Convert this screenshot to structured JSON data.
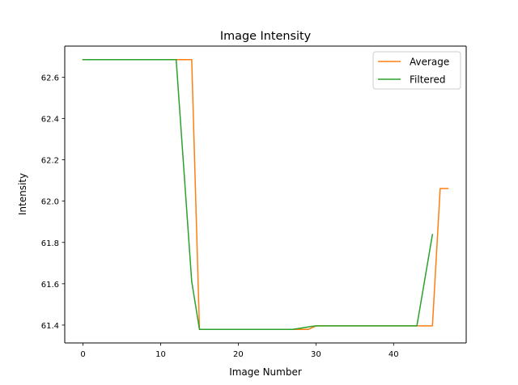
{
  "chart_data": {
    "type": "line",
    "title": "Image Intensity",
    "xlabel": "Image Number",
    "ylabel": "Intensity",
    "xlim": [
      -2.35,
      49.35
    ],
    "ylim": [
      61.3135,
      62.7505
    ],
    "xticks": [
      0,
      10,
      20,
      30,
      40
    ],
    "yticks": [
      61.4,
      61.6,
      61.8,
      62.0,
      62.2,
      62.4,
      62.6
    ],
    "ytick_labels": [
      "61.4",
      "61.6",
      "61.8",
      "62.0",
      "62.2",
      "62.4",
      "62.6"
    ],
    "grid": false,
    "legend_position": "upper right",
    "series": [
      {
        "name": "Average",
        "color": "#ff7f0e",
        "x": [
          0,
          1,
          2,
          3,
          4,
          5,
          6,
          7,
          8,
          9,
          10,
          11,
          12,
          13,
          14,
          15,
          16,
          17,
          18,
          19,
          20,
          21,
          22,
          23,
          24,
          25,
          26,
          27,
          28,
          29,
          30,
          31,
          32,
          33,
          34,
          35,
          36,
          37,
          38,
          39,
          40,
          41,
          42,
          43,
          44,
          45,
          46,
          47
        ],
        "y": [
          62.685,
          62.685,
          62.685,
          62.685,
          62.685,
          62.685,
          62.685,
          62.685,
          62.685,
          62.685,
          62.685,
          62.685,
          62.685,
          62.685,
          62.685,
          61.379,
          61.379,
          61.379,
          61.379,
          61.379,
          61.379,
          61.379,
          61.379,
          61.379,
          61.379,
          61.379,
          61.379,
          61.379,
          61.379,
          61.379,
          61.396,
          61.396,
          61.396,
          61.396,
          61.396,
          61.396,
          61.396,
          61.396,
          61.396,
          61.396,
          61.396,
          61.396,
          61.396,
          61.396,
          61.396,
          61.396,
          62.061,
          62.061
        ]
      },
      {
        "name": "Filtered",
        "color": "#2ca02c",
        "x": [
          0,
          1,
          2,
          3,
          4,
          5,
          6,
          7,
          8,
          9,
          10,
          11,
          12,
          13,
          14,
          15,
          16,
          17,
          18,
          19,
          20,
          21,
          22,
          23,
          24,
          25,
          26,
          27,
          28,
          29,
          30,
          31,
          32,
          33,
          34,
          35,
          36,
          37,
          38,
          39,
          40,
          41,
          42,
          43,
          44,
          45
        ],
        "y": [
          62.685,
          62.685,
          62.685,
          62.685,
          62.685,
          62.685,
          62.685,
          62.685,
          62.685,
          62.685,
          62.685,
          62.685,
          62.685,
          62.148,
          61.611,
          61.379,
          61.379,
          61.379,
          61.379,
          61.379,
          61.379,
          61.379,
          61.379,
          61.379,
          61.379,
          61.379,
          61.379,
          61.379,
          61.385,
          61.391,
          61.396,
          61.396,
          61.396,
          61.396,
          61.396,
          61.396,
          61.396,
          61.396,
          61.396,
          61.396,
          61.396,
          61.396,
          61.396,
          61.396,
          61.617,
          61.838
        ]
      }
    ]
  }
}
